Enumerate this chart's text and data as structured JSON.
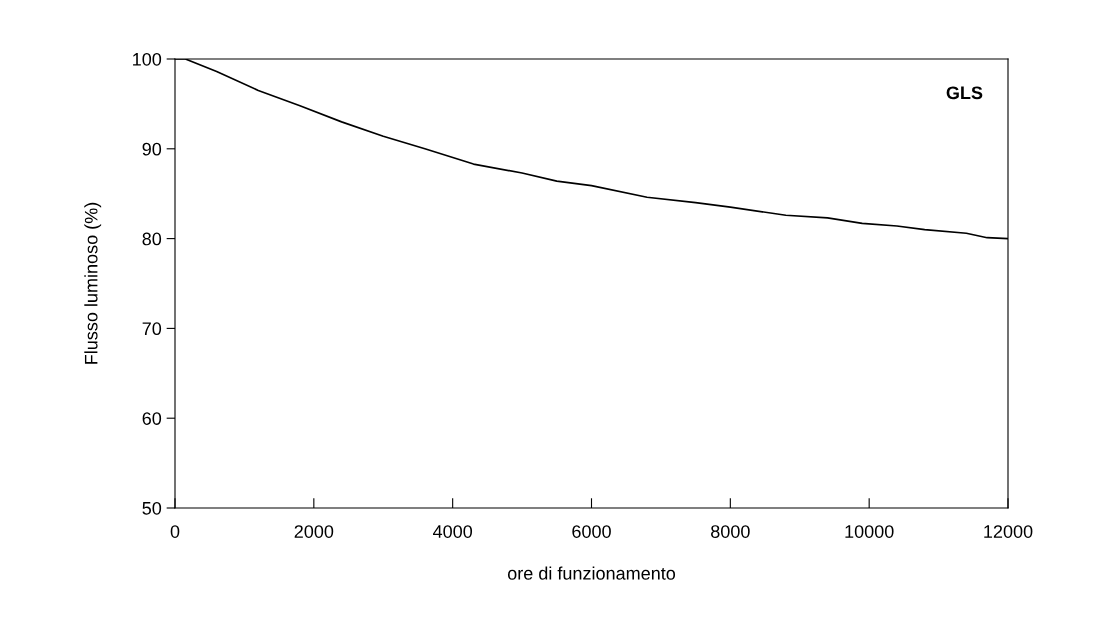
{
  "chart_data": {
    "type": "line",
    "xlabel": "ore di funzionamento",
    "ylabel": "Flusso luminoso (%)",
    "annotations": [
      "GLS"
    ],
    "x": [
      0,
      150,
      600,
      1200,
      1800,
      2400,
      3000,
      3600,
      4300,
      5000,
      5500,
      6000,
      6800,
      7500,
      8000,
      8800,
      9400,
      9900,
      10400,
      10800,
      11400,
      11700,
      12000
    ],
    "series": [
      {
        "color": "#000000",
        "values": [
          100,
          100,
          98.6,
          96.5,
          94.8,
          93,
          91.4,
          90,
          88.3,
          87.3,
          86.4,
          85.9,
          84.6,
          84,
          83.5,
          82.6,
          82.3,
          81.7,
          81.4,
          81,
          80.6,
          80.1,
          80
        ]
      }
    ],
    "xlim": [
      0,
      12000
    ],
    "xticks": [
      0,
      2000,
      4000,
      6000,
      8000,
      10000,
      12000
    ],
    "ylim": [
      50,
      100
    ],
    "yticks": [
      50,
      60,
      70,
      80,
      90,
      100
    ],
    "grid": false,
    "legend": false,
    "marker": "none",
    "line_style": "solid"
  }
}
